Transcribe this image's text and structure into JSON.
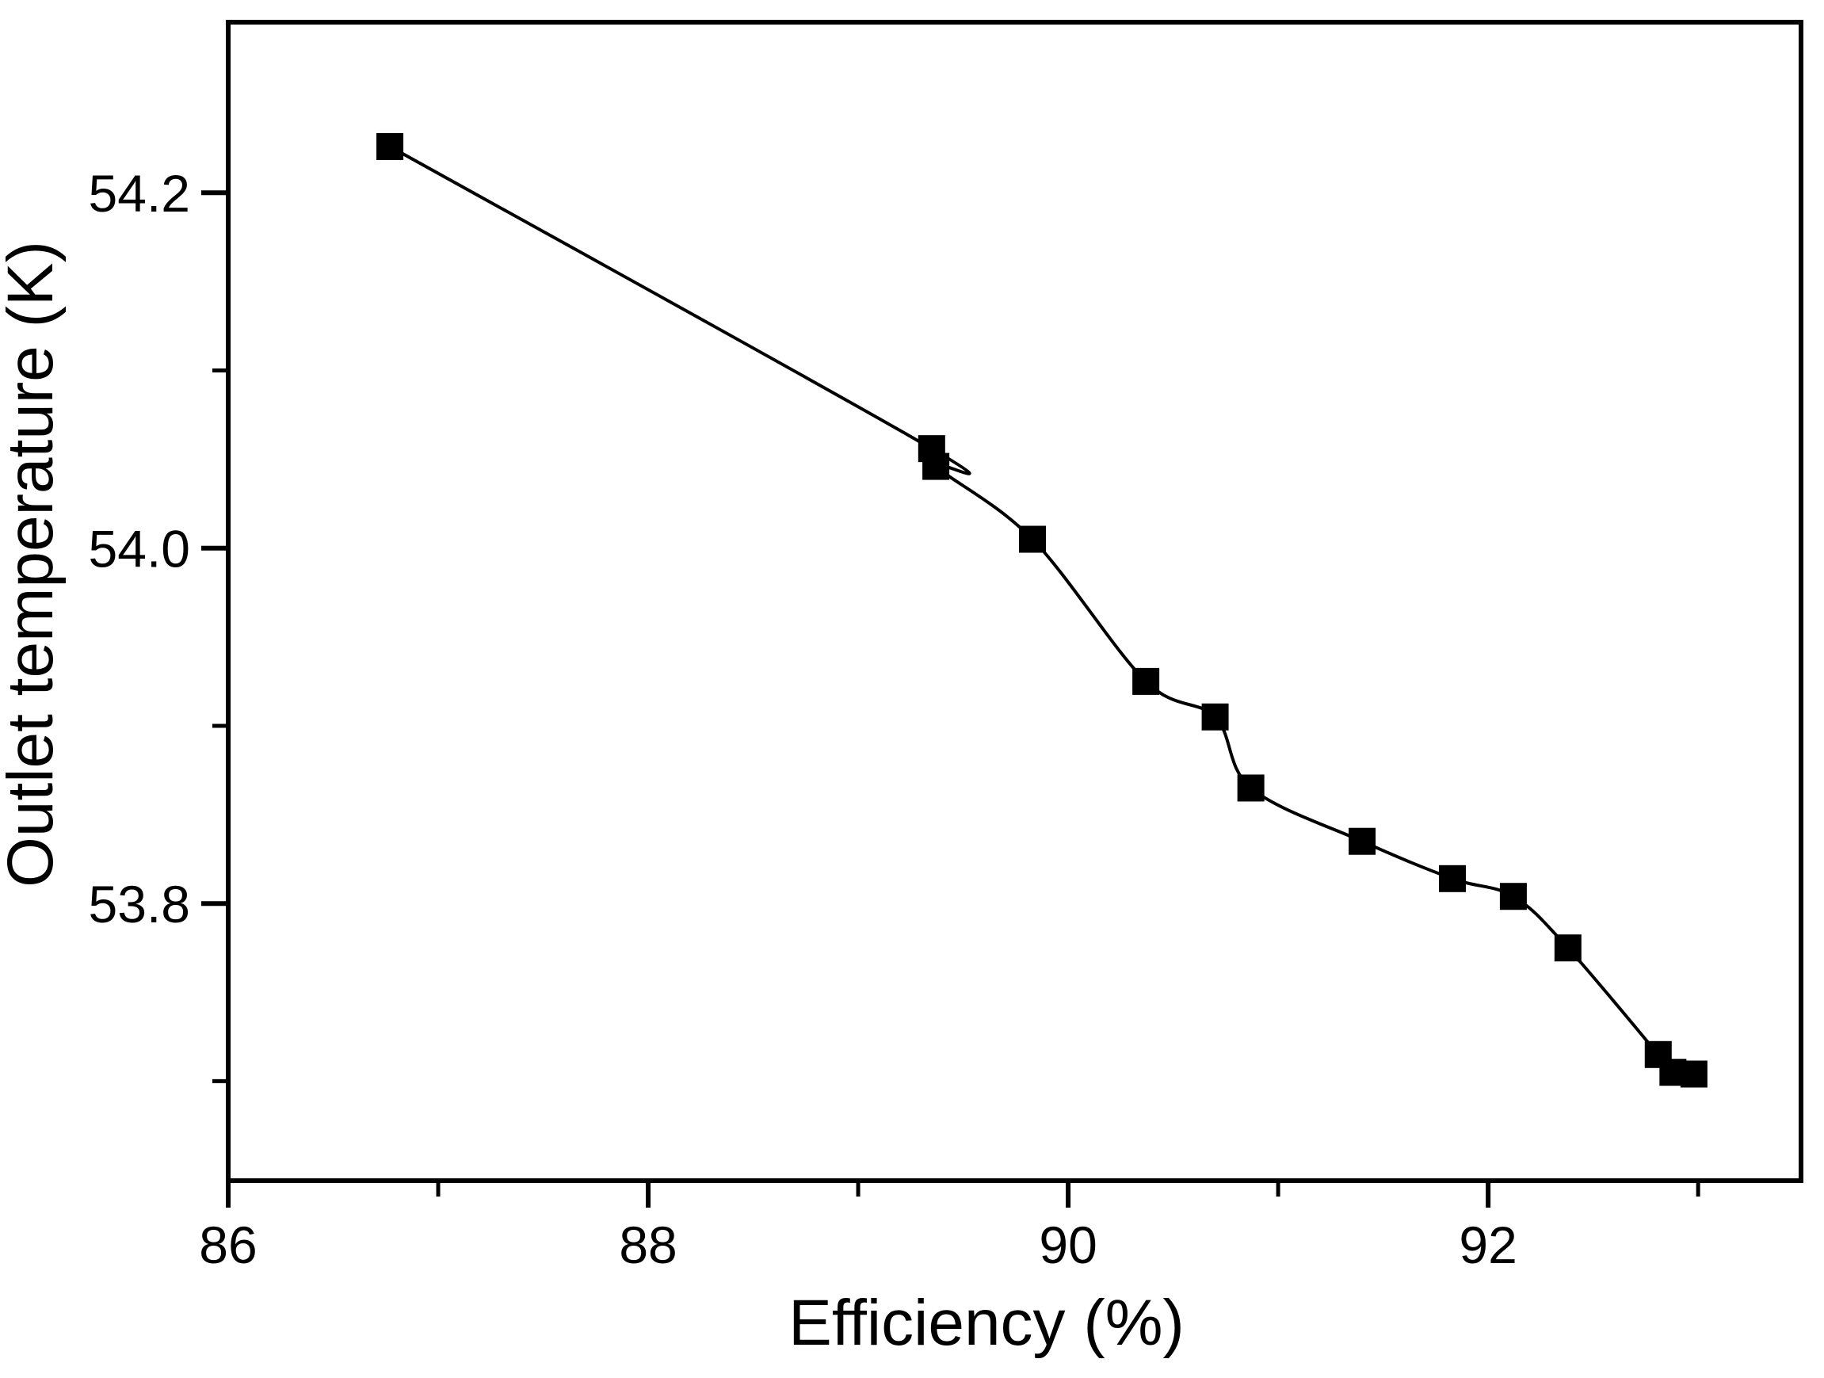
{
  "figure": {
    "background_color": "#ffffff",
    "axis_color": "#000000",
    "marker_shape": "filled-square",
    "marker_color": "#000000",
    "line_color": "#000000"
  },
  "chart_data": {
    "type": "line",
    "title": "",
    "xlabel": "Efficiency (%)",
    "ylabel": "Outlet temperature (K)",
    "xlim": [
      86,
      93.49
    ],
    "ylim": [
      53.644,
      54.296
    ],
    "grid": false,
    "legend_position": "none",
    "x_major_ticks": [
      86,
      88,
      90,
      92
    ],
    "x_tick_labels": [
      "86",
      "88",
      "90",
      "92"
    ],
    "x_minor_ticks": [
      87,
      89,
      91,
      93
    ],
    "y_major_ticks": [
      54.2,
      54.0,
      53.8
    ],
    "y_tick_labels": [
      "54.2",
      "54.0",
      "53.8"
    ],
    "y_minor_ticks": [
      54.1,
      53.9,
      53.7
    ],
    "series": [
      {
        "name": "outlet-temperature-vs-efficiency",
        "marker": "filled-square",
        "smoothed": true,
        "points": [
          {
            "x": 86.77,
            "y": 54.226
          },
          {
            "x": 89.35,
            "y": 54.056
          },
          {
            "x": 89.37,
            "y": 54.046
          },
          {
            "x": 89.83,
            "y": 54.005
          },
          {
            "x": 90.37,
            "y": 53.925
          },
          {
            "x": 90.7,
            "y": 53.905
          },
          {
            "x": 90.87,
            "y": 53.865
          },
          {
            "x": 91.4,
            "y": 53.835
          },
          {
            "x": 91.83,
            "y": 53.814
          },
          {
            "x": 92.12,
            "y": 53.804
          },
          {
            "x": 92.38,
            "y": 53.775
          },
          {
            "x": 92.81,
            "y": 53.715
          },
          {
            "x": 92.88,
            "y": 53.705
          },
          {
            "x": 92.98,
            "y": 53.704
          }
        ]
      }
    ]
  }
}
